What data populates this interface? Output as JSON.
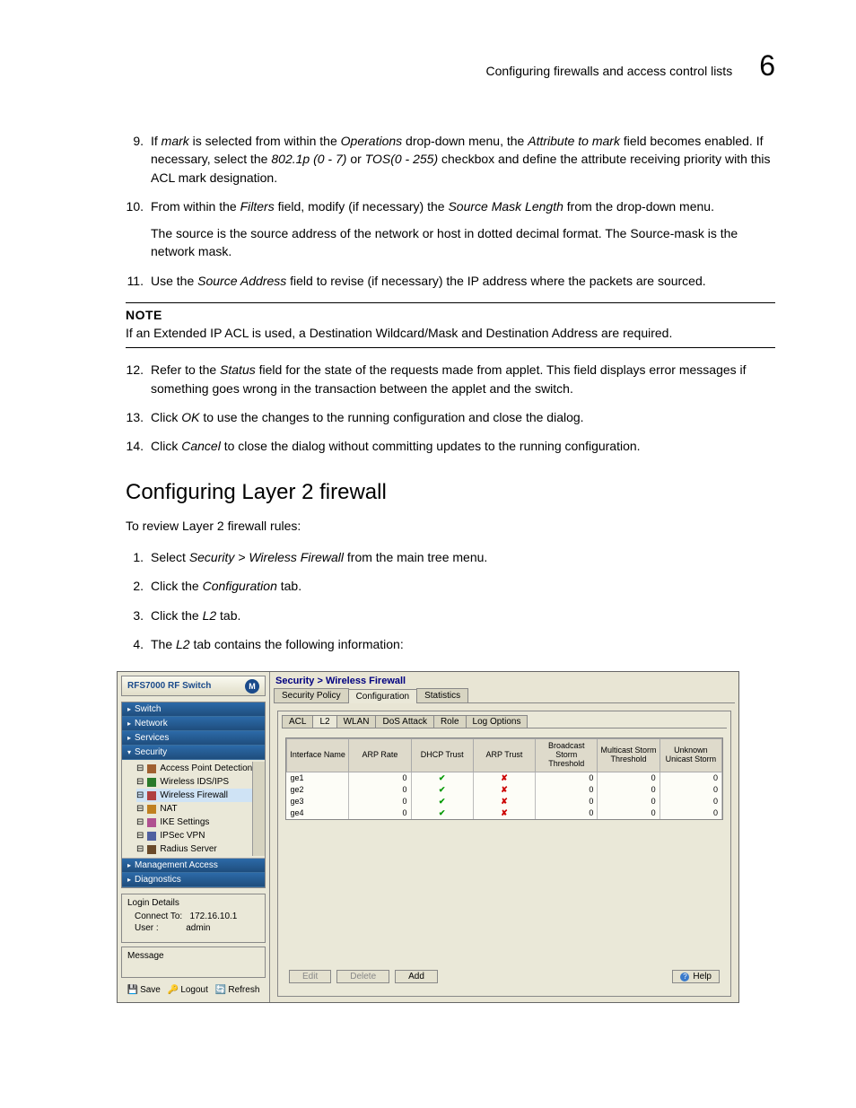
{
  "page": {
    "header_title": "Configuring firewalls and access control lists",
    "chapter_num": "6"
  },
  "steps_a": [
    {
      "num": "9.",
      "html": "If <i>mark</i> is selected from within the <i>Operations</i> drop-down menu, the <i>Attribute to mark</i> field becomes enabled. If necessary, select the <i>802.1p (0 - 7)</i> or <i>TOS(0 - 255)</i> checkbox and define the attribute receiving priority with this ACL mark designation."
    },
    {
      "num": "10.",
      "html": "From within the <i>Filters</i> field, modify (if necessary) the <i>Source Mask Length</i> from the drop-down menu.",
      "extra": "The source is the source address of the network or host in dotted decimal format. The Source-mask is the network mask."
    },
    {
      "num": "11.",
      "html": "Use the <i>Source Address</i> field to revise (if necessary) the IP address where the packets are sourced."
    }
  ],
  "note": {
    "title": "NOTE",
    "body": "If an Extended IP ACL is used, a Destination Wildcard/Mask and Destination Address are required."
  },
  "steps_b": [
    {
      "num": "12.",
      "html": "Refer to the <i>Status</i> field for the state of the requests made from applet. This field displays error messages if something goes wrong in the transaction between the applet and the switch."
    },
    {
      "num": "13.",
      "html": "Click <i>OK</i> to use the changes to the running configuration and close the dialog."
    },
    {
      "num": "14.",
      "html": "Click <i>Cancel</i> to close the dialog without committing updates to the running configuration."
    }
  ],
  "section": {
    "heading": "Configuring Layer 2 firewall",
    "intro": "To review Layer 2 firewall rules:",
    "steps": [
      {
        "num": "1.",
        "html": "Select <i>Security > Wireless Firewall</i> from the main tree menu."
      },
      {
        "num": "2.",
        "html": "Click the <i>Configuration</i> tab."
      },
      {
        "num": "3.",
        "html": "Click the <i>L2</i> tab."
      },
      {
        "num": "4.",
        "html": "The <i>L2</i> tab contains the following information:"
      }
    ]
  },
  "ui": {
    "device": "RFS7000 RF Switch",
    "logo": "M",
    "nav": [
      "Switch",
      "Network",
      "Services",
      "Security"
    ],
    "security_subs": [
      {
        "label": "Access Point Detection",
        "color": "#a06030"
      },
      {
        "label": "Wireless IDS/IPS",
        "color": "#2a7a2a"
      },
      {
        "label": "Wireless Firewall",
        "color": "#b04040",
        "selected": true
      },
      {
        "label": "NAT",
        "color": "#c08020"
      },
      {
        "label": "IKE Settings",
        "color": "#b05090"
      },
      {
        "label": "IPSec VPN",
        "color": "#5060a0"
      },
      {
        "label": "Radius Server",
        "color": "#6a4a2a"
      }
    ],
    "nav2": [
      "Management Access",
      "Diagnostics"
    ],
    "login_title": "Login Details",
    "connect_label": "Connect To:",
    "connect_val": "172.16.10.1",
    "user_label": "User :",
    "user_val": "admin",
    "message_label": "Message",
    "bottom_btns": [
      "Save",
      "Logout",
      "Refresh"
    ],
    "breadcrumb": "Security > Wireless Firewall",
    "top_tabs": [
      "Security Policy",
      "Configuration",
      "Statistics"
    ],
    "top_active": 1,
    "sub_tabs": [
      "ACL",
      "L2",
      "WLAN",
      "DoS Attack",
      "Role",
      "Log Options"
    ],
    "sub_active": 1,
    "columns": [
      "Interface Name",
      "ARP Rate",
      "DHCP Trust",
      "ARP Trust",
      "Broadcast Storm Threshold",
      "Multicast Storm Threshold",
      "Unknown Unicast Storm"
    ],
    "rows": [
      {
        "iface": "ge1",
        "arp": "0",
        "dhcp": true,
        "arpt": false,
        "bs": "0",
        "ms": "0",
        "us": "0"
      },
      {
        "iface": "ge2",
        "arp": "0",
        "dhcp": true,
        "arpt": false,
        "bs": "0",
        "ms": "0",
        "us": "0"
      },
      {
        "iface": "ge3",
        "arp": "0",
        "dhcp": true,
        "arpt": false,
        "bs": "0",
        "ms": "0",
        "us": "0"
      },
      {
        "iface": "ge4",
        "arp": "0",
        "dhcp": true,
        "arpt": false,
        "bs": "0",
        "ms": "0",
        "us": "0"
      }
    ],
    "actions": {
      "edit": "Edit",
      "delete": "Delete",
      "add": "Add",
      "help": "Help"
    }
  }
}
